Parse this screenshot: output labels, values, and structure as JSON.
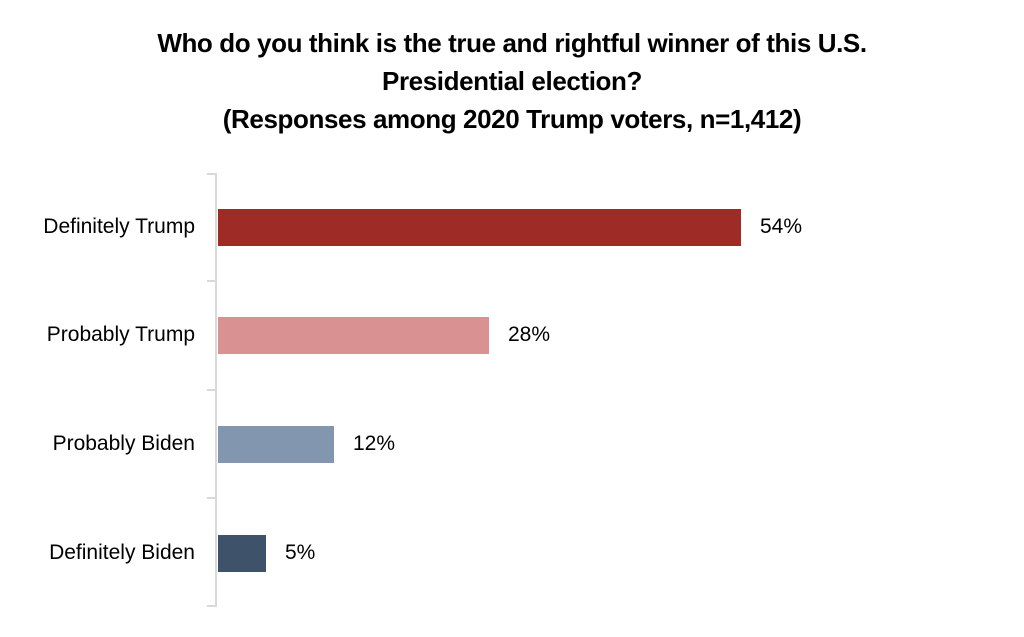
{
  "chart_data": {
    "type": "bar",
    "orientation": "horizontal",
    "title_lines": [
      "Who do you think is the true and rightful winner of this U.S.",
      "Presidential election?",
      "(Responses among 2020 Trump voters, n=1,412)"
    ],
    "categories": [
      "Definitely Trump",
      "Probably Trump",
      "Probably Biden",
      "Definitely Biden"
    ],
    "values": [
      54,
      28,
      12,
      5
    ],
    "value_labels": [
      "54%",
      "28%",
      "12%",
      "5%"
    ],
    "series_colors": [
      "#9E2B25",
      "#D99192",
      "#8396B0",
      "#3E5269"
    ],
    "axis": {
      "xlim": [
        0,
        80
      ],
      "x_tick_labels_visible": false,
      "gridlines": false,
      "axis_line_color": "#D9D9D9"
    },
    "legend": "none",
    "title_color": "#000000",
    "label_color": "#000000",
    "background_color": "#FFFFFF"
  }
}
